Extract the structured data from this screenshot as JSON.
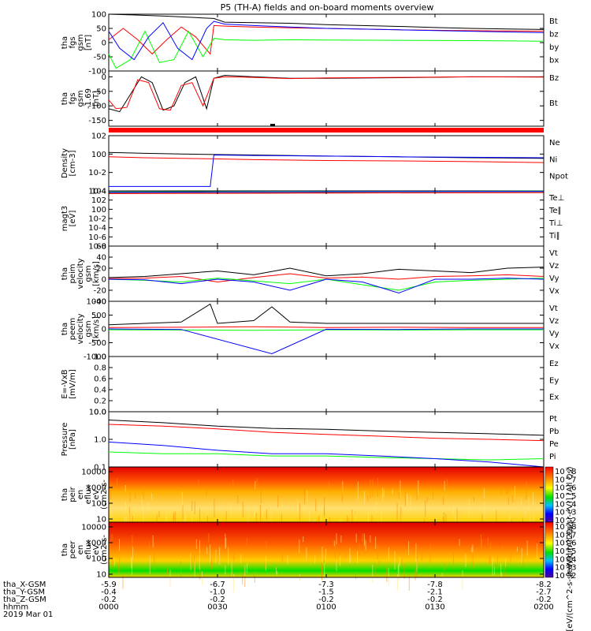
{
  "title": "P5 (TH-A) fields and on-board moments overview",
  "footer": {
    "rows": [
      {
        "label": "tha_X-GSM",
        "values": [
          "-5.9",
          "-6.7",
          "-7.3",
          "-7.8",
          "-8.2"
        ]
      },
      {
        "label": "tha_Y-GSM",
        "values": [
          "-0.4",
          "-1.0",
          "-1.5",
          "-2.1",
          "-2.7"
        ]
      },
      {
        "label": "tha_Z-GSM",
        "values": [
          "-0.2",
          "-0.2",
          "-0.2",
          "-0.2",
          "-0.2"
        ]
      },
      {
        "label": "hhmm",
        "values": [
          "0000",
          "0030",
          "0100",
          "0130",
          "0200"
        ]
      }
    ],
    "date": "2019 Mar 01"
  },
  "colors": {
    "black": "#000000",
    "red": "#ff0000",
    "green": "#00ff00",
    "blue": "#0000ff"
  },
  "chart_data": [
    {
      "type": "line",
      "ylabel": [
        "tha",
        "fgs",
        "gsm",
        "[nT]"
      ],
      "ylim": [
        -100,
        100
      ],
      "yticks": [
        "100",
        "50",
        "0",
        "-50",
        "-100"
      ],
      "legend": [
        {
          "name": "Bt",
          "color": "#000000"
        },
        {
          "name": "bz",
          "color": "#ff0000"
        },
        {
          "name": "by",
          "color": "#00ff00"
        },
        {
          "name": "bx",
          "color": "#0000ff"
        }
      ],
      "series": [
        {
          "name": "Bt",
          "x": [
            0,
            8,
            16,
            24,
            29,
            32,
            40,
            50,
            60,
            70,
            80,
            90,
            100,
            110,
            120
          ],
          "y": [
            100,
            97,
            93,
            88,
            85,
            72,
            70,
            68,
            63,
            60,
            57,
            53,
            50,
            48,
            46
          ]
        },
        {
          "name": "bz",
          "x": [
            0,
            4,
            8,
            12,
            16,
            20,
            24,
            28,
            29,
            32,
            40,
            50,
            60,
            80,
            100,
            120
          ],
          "y": [
            10,
            50,
            10,
            -40,
            10,
            55,
            20,
            -40,
            60,
            58,
            55,
            52,
            50,
            45,
            42,
            40
          ]
        },
        {
          "name": "by",
          "x": [
            0,
            2,
            6,
            10,
            14,
            18,
            22,
            26,
            29,
            32,
            40,
            50,
            60,
            80,
            100,
            120
          ],
          "y": [
            -40,
            -90,
            -60,
            40,
            -70,
            -60,
            40,
            -50,
            15,
            10,
            8,
            10,
            9,
            8,
            7,
            5
          ]
        },
        {
          "name": "bx",
          "x": [
            0,
            3,
            7,
            11,
            15,
            19,
            23,
            27,
            29,
            32,
            40,
            50,
            60,
            80,
            100,
            120
          ],
          "y": [
            40,
            -20,
            -60,
            20,
            70,
            -20,
            -60,
            50,
            75,
            65,
            60,
            55,
            50,
            45,
            40,
            35
          ]
        }
      ]
    },
    {
      "type": "line",
      "ylabel": [
        "tha",
        "fgs",
        "gsm",
        "-1.69",
        "[nT]"
      ],
      "ylim": [
        -170,
        20
      ],
      "yticks": [
        "0",
        "-50",
        "-100",
        "-150"
      ],
      "legend": [
        {
          "name": "Bz",
          "color": "#000000"
        },
        {
          "name": "Bt",
          "color": "#ff0000"
        }
      ],
      "series": [
        {
          "name": "Bz",
          "x": [
            0,
            3,
            6,
            9,
            12,
            15,
            18,
            21,
            24,
            27,
            29,
            32,
            40,
            50,
            60,
            80,
            100,
            120
          ],
          "y": [
            -110,
            -120,
            -60,
            0,
            -20,
            -115,
            -100,
            -20,
            0,
            -110,
            -5,
            5,
            0,
            -5,
            -5,
            -3,
            0,
            0
          ]
        },
        {
          "name": "Bt",
          "x": [
            0,
            2,
            5,
            8,
            11,
            14,
            17,
            20,
            23,
            26,
            29,
            32,
            40,
            50,
            60,
            80,
            100,
            120
          ],
          "y": [
            -80,
            -110,
            -105,
            -10,
            -20,
            -110,
            -115,
            -30,
            -20,
            -100,
            -5,
            0,
            -2,
            -6,
            -4,
            -2,
            0,
            -1
          ]
        }
      ]
    },
    {
      "type": "line",
      "ylabel": [
        "Density",
        "[cm-3]"
      ],
      "scale": "log",
      "yticks": [
        "10^2",
        "10^0",
        "10^-2",
        "10^-4"
      ],
      "legend": [
        {
          "name": "Ne",
          "color": "#ff0000"
        },
        {
          "name": "Ni",
          "color": "#000000"
        },
        {
          "name": "Npot",
          "color": "#0000ff"
        }
      ],
      "series": [
        {
          "name": "Ni",
          "x": [
            0,
            10,
            20,
            29,
            40,
            60,
            80,
            100,
            120
          ],
          "y": [
            1.5,
            1.2,
            1.0,
            0.9,
            0.8,
            0.6,
            0.5,
            0.4,
            0.35
          ]
        },
        {
          "name": "Ne",
          "x": [
            0,
            10,
            20,
            29,
            40,
            60,
            80,
            100,
            120
          ],
          "y": [
            0.5,
            0.4,
            0.35,
            0.3,
            0.25,
            0.2,
            0.18,
            0.15,
            0.12
          ]
        },
        {
          "name": "Npot",
          "x": [
            0,
            10,
            20,
            28,
            29,
            40,
            60,
            80,
            100,
            120
          ],
          "y": [
            0.0003,
            0.0003,
            0.0003,
            0.0003,
            0.8,
            0.7,
            0.6,
            0.5,
            0.45,
            0.4
          ]
        }
      ]
    },
    {
      "type": "line",
      "ylabel": [
        "magt3",
        "[eV]"
      ],
      "scale": "log",
      "yticks": [
        "10^4",
        "10^2",
        "10^0",
        "10^-2",
        "10^-4",
        "10^-6",
        "10^-8"
      ],
      "legend": [
        {
          "name": "Te⊥",
          "color": "#ff0000"
        },
        {
          "name": "Te∥",
          "color": "#000000"
        },
        {
          "name": "Ti⊥",
          "color": "#0000ff"
        },
        {
          "name": "Ti∥",
          "color": "#00ff00"
        }
      ],
      "series": [
        {
          "name": "Ti∥",
          "x": [
            0,
            30,
            60,
            90,
            120
          ],
          "y": [
            6000,
            7000,
            8000,
            8000,
            9000
          ]
        },
        {
          "name": "Ti⊥",
          "x": [
            0,
            30,
            60,
            90,
            120
          ],
          "y": [
            5000,
            6000,
            7000,
            7500,
            8000
          ]
        },
        {
          "name": "Te∥",
          "x": [
            0,
            30,
            60,
            90,
            120
          ],
          "y": [
            3000,
            3500,
            4000,
            4200,
            4500
          ]
        },
        {
          "name": "Te⊥",
          "x": [
            0,
            30,
            60,
            90,
            120
          ],
          "y": [
            2500,
            3000,
            3500,
            3800,
            4000
          ]
        }
      ]
    },
    {
      "type": "line",
      "ylabel": [
        "tha",
        "peim",
        "velocity",
        "gsm",
        "[km/s]"
      ],
      "ylim": [
        -40,
        60
      ],
      "yticks": [
        "60",
        "40",
        "20",
        "0",
        "-20",
        "-40"
      ],
      "legend": [
        {
          "name": "Vt",
          "color": "#000000"
        },
        {
          "name": "Vz",
          "color": "#ff0000"
        },
        {
          "name": "Vy",
          "color": "#00ff00"
        },
        {
          "name": "Vx",
          "color": "#0000ff"
        }
      ],
      "series": [
        {
          "name": "Vt",
          "x": [
            0,
            10,
            20,
            30,
            40,
            50,
            60,
            70,
            80,
            90,
            100,
            110,
            120
          ],
          "y": [
            3,
            5,
            10,
            15,
            8,
            20,
            6,
            10,
            18,
            15,
            12,
            20,
            22
          ]
        },
        {
          "name": "Vz",
          "x": [
            0,
            10,
            20,
            30,
            40,
            50,
            60,
            70,
            80,
            90,
            100,
            110,
            120
          ],
          "y": [
            1,
            2,
            5,
            -5,
            3,
            10,
            2,
            4,
            0,
            5,
            6,
            8,
            5
          ]
        },
        {
          "name": "Vy",
          "x": [
            0,
            10,
            20,
            30,
            40,
            50,
            60,
            70,
            80,
            90,
            100,
            110,
            120
          ],
          "y": [
            0,
            -2,
            -5,
            2,
            -3,
            -8,
            0,
            -10,
            -20,
            -5,
            -2,
            0,
            2
          ]
        },
        {
          "name": "Vx",
          "x": [
            0,
            10,
            20,
            30,
            40,
            50,
            60,
            70,
            80,
            90,
            100,
            110,
            120
          ],
          "y": [
            0,
            -1,
            -8,
            0,
            -5,
            -20,
            0,
            -5,
            -25,
            0,
            0,
            2,
            0
          ]
        }
      ]
    },
    {
      "type": "line",
      "ylabel": [
        "tha",
        "peem",
        "velocity",
        "gsm",
        "[km/s]"
      ],
      "ylim": [
        -1000,
        1000
      ],
      "yticks": [
        "1000",
        "500",
        "0",
        "-500",
        "-1000"
      ],
      "legend": [
        {
          "name": "Vt",
          "color": "#000000"
        },
        {
          "name": "Vz",
          "color": "#ff0000"
        },
        {
          "name": "Vy",
          "color": "#00ff00"
        },
        {
          "name": "Vx",
          "color": "#0000ff"
        }
      ],
      "series": [
        {
          "name": "Vt",
          "x": [
            0,
            10,
            20,
            28,
            30,
            40,
            45,
            50,
            60,
            80,
            100,
            120
          ],
          "y": [
            150,
            200,
            250,
            900,
            200,
            300,
            800,
            250,
            200,
            200,
            200,
            200
          ]
        },
        {
          "name": "Vz",
          "x": [
            0,
            20,
            40,
            60,
            80,
            100,
            120
          ],
          "y": [
            50,
            60,
            80,
            50,
            60,
            50,
            50
          ]
        },
        {
          "name": "Vy",
          "x": [
            0,
            20,
            40,
            60,
            80,
            100,
            120
          ],
          "y": [
            -30,
            -40,
            -50,
            -30,
            -40,
            -30,
            -30
          ]
        },
        {
          "name": "Vx",
          "x": [
            0,
            20,
            45,
            60,
            80,
            100,
            120
          ],
          "y": [
            0,
            -20,
            -900,
            -10,
            -20,
            0,
            0
          ]
        }
      ]
    },
    {
      "type": "line",
      "ylabel": [
        "E=-VxB",
        "[mV/m]"
      ],
      "ylim": [
        0,
        1
      ],
      "yticks": [
        "1.0",
        "0.8",
        "0.6",
        "0.4",
        "0.2",
        "0.0"
      ],
      "legend": [
        {
          "name": "Ez",
          "color": "#ff0000"
        },
        {
          "name": "Ey",
          "color": "#00ff00"
        },
        {
          "name": "Ex",
          "color": "#0000ff"
        }
      ],
      "series": []
    },
    {
      "type": "line",
      "ylabel": [
        "Pressure",
        "[nPa]"
      ],
      "scale": "log",
      "yticks": [
        "10.0",
        "1.0",
        "0.1"
      ],
      "legend": [
        {
          "name": "Pt",
          "color": "#000000"
        },
        {
          "name": "Pb",
          "color": "#ff0000"
        },
        {
          "name": "Pe",
          "color": "#00ff00"
        },
        {
          "name": "Pi",
          "color": "#0000ff"
        }
      ],
      "series": [
        {
          "name": "Pt",
          "x": [
            0,
            15,
            30,
            45,
            60,
            75,
            90,
            105,
            120
          ],
          "y": [
            5.0,
            4.0,
            3.0,
            2.5,
            2.3,
            2.0,
            1.8,
            1.6,
            1.4
          ]
        },
        {
          "name": "Pb",
          "x": [
            0,
            15,
            30,
            45,
            60,
            75,
            90,
            105,
            120
          ],
          "y": [
            3.5,
            3.0,
            2.4,
            1.8,
            1.5,
            1.3,
            1.1,
            1.0,
            0.9
          ]
        },
        {
          "name": "Pe",
          "x": [
            0,
            15,
            30,
            45,
            60,
            75,
            90,
            105,
            120
          ],
          "y": [
            0.35,
            0.3,
            0.3,
            0.25,
            0.25,
            0.22,
            0.2,
            0.18,
            0.2
          ]
        },
        {
          "name": "Pi",
          "x": [
            0,
            15,
            30,
            45,
            60,
            75,
            90,
            105,
            120
          ],
          "y": [
            0.8,
            0.6,
            0.4,
            0.3,
            0.3,
            0.25,
            0.2,
            0.15,
            0.1
          ]
        }
      ]
    },
    {
      "type": "heatmap",
      "ylabel": [
        "tha",
        "peir",
        "en",
        "eflux",
        "eV",
        "(cm2-s-",
        "sr-eV)"
      ],
      "yticks": [
        "10000",
        "1000",
        "100",
        "10"
      ],
      "colorbar": {
        "label": "[eV/(cm^2-s-sr-eV)] (All Qs)",
        "ticks": [
          "10^8",
          "10^7",
          "10^6",
          "10^5",
          "10^4",
          "10^3",
          "10^2"
        ]
      }
    },
    {
      "type": "heatmap",
      "ylabel": [
        "tha",
        "peer",
        "en",
        "eflux",
        "eV",
        "(cm2-s-",
        "sr-eV)"
      ],
      "yticks": [
        "10000",
        "1000",
        "100",
        "10"
      ],
      "colorbar": {
        "label": "[eV/(cm^2-s-sr-eV)] (All Qs)",
        "ticks": [
          "10^8",
          "10^7",
          "10^6",
          "10^5",
          "10^4",
          "10^3",
          "10^2"
        ]
      }
    }
  ]
}
